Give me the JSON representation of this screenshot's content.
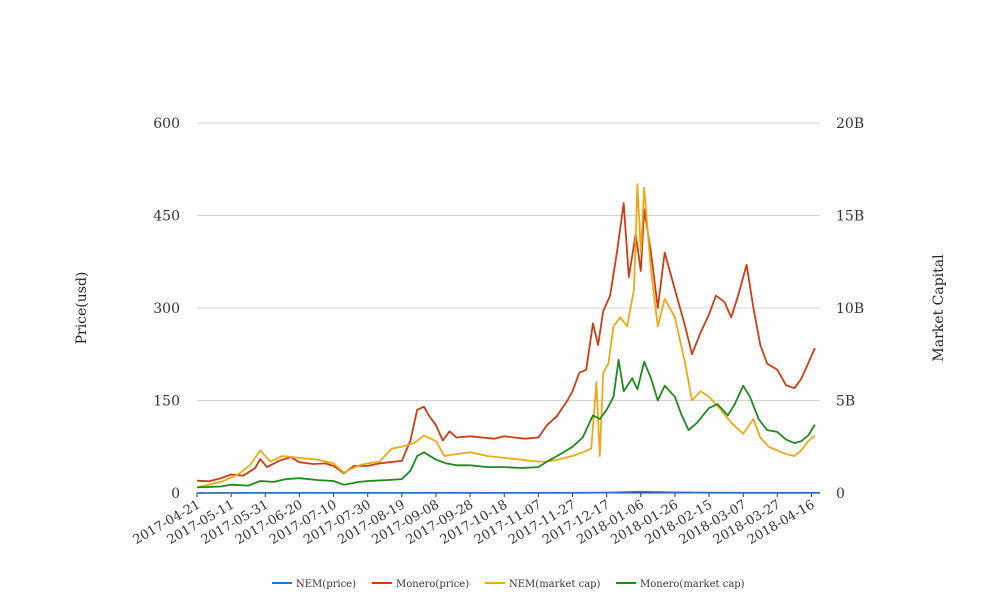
{
  "chart_data": {
    "type": "line",
    "ylabel": "Price(usd)",
    "y2label": "Market Capital",
    "ylim": [
      0,
      600
    ],
    "y2lim": [
      0,
      20000000000
    ],
    "yticks": [
      0,
      150,
      300,
      450,
      600
    ],
    "yticks_labels": [
      "0",
      "150",
      "300",
      "450",
      "600"
    ],
    "y2ticks_labels": [
      "0",
      "5B",
      "10B",
      "15B",
      "20B"
    ],
    "xlim": [
      "2017-04-21",
      "2018-04-21"
    ],
    "xtick_labels": [
      "2017-04-21",
      "2017-05-11",
      "2017-05-31",
      "2017-06-20",
      "2017-07-10",
      "2017-07-30",
      "2017-08-19",
      "2017-09-08",
      "2017-09-28",
      "2017-10-18",
      "2017-11-07",
      "2017-11-27",
      "2017-12-17",
      "2018-01-06",
      "2018-01-26",
      "2018-02-15",
      "2018-03-07",
      "2018-03-27",
      "2018-04-16"
    ],
    "grid": "horizontal",
    "legend_position": "bottom",
    "series": [
      {
        "name": "NEM(price)",
        "axis": "left",
        "color": "#2a6fc9",
        "points": [
          [
            "2017-04-21",
            0.01
          ],
          [
            "2017-05-21",
            0.2
          ],
          [
            "2017-06-20",
            0.2
          ],
          [
            "2017-08-19",
            0.2
          ],
          [
            "2017-09-08",
            0.3
          ],
          [
            "2017-10-18",
            0.2
          ],
          [
            "2017-11-27",
            0.3
          ],
          [
            "2017-12-17",
            0.7
          ],
          [
            "2018-01-06",
            1.9
          ],
          [
            "2018-01-26",
            1.0
          ],
          [
            "2018-02-15",
            0.5
          ],
          [
            "2018-03-07",
            0.4
          ],
          [
            "2018-03-27",
            0.25
          ],
          [
            "2018-04-21",
            0.3
          ]
        ]
      },
      {
        "name": "Monero(price)",
        "axis": "left",
        "color": "#cc3d14",
        "points": [
          [
            "2017-04-21",
            20
          ],
          [
            "2017-04-28",
            19
          ],
          [
            "2017-05-05",
            24
          ],
          [
            "2017-05-11",
            30
          ],
          [
            "2017-05-18",
            28
          ],
          [
            "2017-05-25",
            40
          ],
          [
            "2017-05-28",
            55
          ],
          [
            "2017-06-01",
            42
          ],
          [
            "2017-06-08",
            52
          ],
          [
            "2017-06-15",
            58
          ],
          [
            "2017-06-20",
            50
          ],
          [
            "2017-06-28",
            47
          ],
          [
            "2017-07-05",
            48
          ],
          [
            "2017-07-10",
            44
          ],
          [
            "2017-07-16",
            32
          ],
          [
            "2017-07-22",
            44
          ],
          [
            "2017-07-30",
            44
          ],
          [
            "2017-08-06",
            48
          ],
          [
            "2017-08-12",
            50
          ],
          [
            "2017-08-19",
            52
          ],
          [
            "2017-08-24",
            85
          ],
          [
            "2017-08-28",
            135
          ],
          [
            "2017-09-01",
            140
          ],
          [
            "2017-09-04",
            125
          ],
          [
            "2017-09-08",
            110
          ],
          [
            "2017-09-12",
            85
          ],
          [
            "2017-09-16",
            100
          ],
          [
            "2017-09-20",
            90
          ],
          [
            "2017-09-28",
            92
          ],
          [
            "2017-10-05",
            90
          ],
          [
            "2017-10-12",
            88
          ],
          [
            "2017-10-18",
            92
          ],
          [
            "2017-10-24",
            90
          ],
          [
            "2017-10-30",
            88
          ],
          [
            "2017-11-07",
            90
          ],
          [
            "2017-11-12",
            110
          ],
          [
            "2017-11-18",
            125
          ],
          [
            "2017-11-24",
            150
          ],
          [
            "2017-11-27",
            165
          ],
          [
            "2017-12-01",
            195
          ],
          [
            "2017-12-05",
            200
          ],
          [
            "2017-12-09",
            275
          ],
          [
            "2017-12-12",
            240
          ],
          [
            "2017-12-15",
            295
          ],
          [
            "2017-12-19",
            320
          ],
          [
            "2017-12-23",
            390
          ],
          [
            "2017-12-27",
            470
          ],
          [
            "2017-12-30",
            350
          ],
          [
            "2018-01-03",
            420
          ],
          [
            "2018-01-06",
            360
          ],
          [
            "2018-01-08",
            460
          ],
          [
            "2018-01-12",
            390
          ],
          [
            "2018-01-16",
            300
          ],
          [
            "2018-01-20",
            390
          ],
          [
            "2018-01-26",
            330
          ],
          [
            "2018-02-01",
            270
          ],
          [
            "2018-02-05",
            225
          ],
          [
            "2018-02-10",
            260
          ],
          [
            "2018-02-15",
            290
          ],
          [
            "2018-02-19",
            320
          ],
          [
            "2018-02-24",
            310
          ],
          [
            "2018-02-28",
            285
          ],
          [
            "2018-03-04",
            320
          ],
          [
            "2018-03-09",
            370
          ],
          [
            "2018-03-13",
            300
          ],
          [
            "2018-03-17",
            240
          ],
          [
            "2018-03-21",
            210
          ],
          [
            "2018-03-27",
            200
          ],
          [
            "2018-04-01",
            175
          ],
          [
            "2018-04-06",
            170
          ],
          [
            "2018-04-10",
            185
          ],
          [
            "2018-04-14",
            210
          ],
          [
            "2018-04-18",
            235
          ]
        ]
      },
      {
        "name": "NEM(market cap)",
        "axis": "right",
        "color": "#eda915",
        "points": [
          [
            "2017-04-21",
            300000000
          ],
          [
            "2017-05-05",
            600000000
          ],
          [
            "2017-05-15",
            1000000000
          ],
          [
            "2017-05-22",
            1500000000
          ],
          [
            "2017-05-28",
            2300000000
          ],
          [
            "2017-06-03",
            1700000000
          ],
          [
            "2017-06-10",
            2000000000
          ],
          [
            "2017-06-20",
            1900000000
          ],
          [
            "2017-07-01",
            1800000000
          ],
          [
            "2017-07-10",
            1600000000
          ],
          [
            "2017-07-16",
            1100000000
          ],
          [
            "2017-07-25",
            1500000000
          ],
          [
            "2017-07-30",
            1600000000
          ],
          [
            "2017-08-06",
            1700000000
          ],
          [
            "2017-08-13",
            2400000000
          ],
          [
            "2017-08-19",
            2500000000
          ],
          [
            "2017-08-26",
            2700000000
          ],
          [
            "2017-09-01",
            3100000000
          ],
          [
            "2017-09-08",
            2800000000
          ],
          [
            "2017-09-13",
            2000000000
          ],
          [
            "2017-09-20",
            2100000000
          ],
          [
            "2017-09-28",
            2200000000
          ],
          [
            "2017-10-08",
            2000000000
          ],
          [
            "2017-10-18",
            1900000000
          ],
          [
            "2017-10-28",
            1800000000
          ],
          [
            "2017-11-07",
            1700000000
          ],
          [
            "2017-11-12",
            1700000000
          ],
          [
            "2017-11-18",
            1800000000
          ],
          [
            "2017-11-27",
            2000000000
          ],
          [
            "2017-12-03",
            2200000000
          ],
          [
            "2017-12-08",
            2400000000
          ],
          [
            "2017-12-11",
            6000000000
          ],
          [
            "2017-12-13",
            2000000000
          ],
          [
            "2017-12-15",
            6500000000
          ],
          [
            "2017-12-18",
            7000000000
          ],
          [
            "2017-12-21",
            9000000000
          ],
          [
            "2017-12-25",
            9500000000
          ],
          [
            "2017-12-29",
            9000000000
          ],
          [
            "2018-01-02",
            11000000000
          ],
          [
            "2018-01-04",
            16700000000
          ],
          [
            "2018-01-06",
            13000000000
          ],
          [
            "2018-01-08",
            16500000000
          ],
          [
            "2018-01-12",
            12000000000
          ],
          [
            "2018-01-16",
            9000000000
          ],
          [
            "2018-01-20",
            10500000000
          ],
          [
            "2018-01-26",
            9500000000
          ],
          [
            "2018-02-01",
            7000000000
          ],
          [
            "2018-02-05",
            5000000000
          ],
          [
            "2018-02-10",
            5500000000
          ],
          [
            "2018-02-15",
            5200000000
          ],
          [
            "2018-02-22",
            4500000000
          ],
          [
            "2018-02-28",
            3800000000
          ],
          [
            "2018-03-07",
            3200000000
          ],
          [
            "2018-03-13",
            4000000000
          ],
          [
            "2018-03-17",
            3000000000
          ],
          [
            "2018-03-22",
            2500000000
          ],
          [
            "2018-03-27",
            2300000000
          ],
          [
            "2018-04-01",
            2100000000
          ],
          [
            "2018-04-06",
            2000000000
          ],
          [
            "2018-04-10",
            2300000000
          ],
          [
            "2018-04-14",
            2800000000
          ],
          [
            "2018-04-18",
            3100000000
          ]
        ]
      },
      {
        "name": "Monero(market cap)",
        "axis": "right",
        "color": "#1e8a1e",
        "points": [
          [
            "2017-04-21",
            300000000
          ],
          [
            "2017-05-05",
            350000000
          ],
          [
            "2017-05-11",
            450000000
          ],
          [
            "2017-05-21",
            400000000
          ],
          [
            "2017-05-28",
            650000000
          ],
          [
            "2017-06-05",
            600000000
          ],
          [
            "2017-06-12",
            750000000
          ],
          [
            "2017-06-20",
            800000000
          ],
          [
            "2017-07-01",
            700000000
          ],
          [
            "2017-07-10",
            650000000
          ],
          [
            "2017-07-16",
            450000000
          ],
          [
            "2017-07-25",
            600000000
          ],
          [
            "2017-07-30",
            650000000
          ],
          [
            "2017-08-10",
            700000000
          ],
          [
            "2017-08-19",
            750000000
          ],
          [
            "2017-08-24",
            1200000000
          ],
          [
            "2017-08-28",
            2000000000
          ],
          [
            "2017-09-01",
            2200000000
          ],
          [
            "2017-09-08",
            1800000000
          ],
          [
            "2017-09-14",
            1600000000
          ],
          [
            "2017-09-20",
            1500000000
          ],
          [
            "2017-09-28",
            1500000000
          ],
          [
            "2017-10-08",
            1400000000
          ],
          [
            "2017-10-18",
            1400000000
          ],
          [
            "2017-10-28",
            1350000000
          ],
          [
            "2017-11-07",
            1400000000
          ],
          [
            "2017-11-12",
            1700000000
          ],
          [
            "2017-11-18",
            2000000000
          ],
          [
            "2017-11-27",
            2500000000
          ],
          [
            "2017-12-03",
            3000000000
          ],
          [
            "2017-12-09",
            4200000000
          ],
          [
            "2017-12-13",
            4000000000
          ],
          [
            "2017-12-17",
            4500000000
          ],
          [
            "2017-12-21",
            5200000000
          ],
          [
            "2017-12-24",
            7200000000
          ],
          [
            "2017-12-27",
            5500000000
          ],
          [
            "2018-01-01",
            6200000000
          ],
          [
            "2018-01-04",
            5600000000
          ],
          [
            "2018-01-08",
            7100000000
          ],
          [
            "2018-01-12",
            6200000000
          ],
          [
            "2018-01-16",
            5000000000
          ],
          [
            "2018-01-20",
            5800000000
          ],
          [
            "2018-01-26",
            5200000000
          ],
          [
            "2018-01-30",
            4200000000
          ],
          [
            "2018-02-03",
            3400000000
          ],
          [
            "2018-02-08",
            3800000000
          ],
          [
            "2018-02-15",
            4600000000
          ],
          [
            "2018-02-20",
            4800000000
          ],
          [
            "2018-02-26",
            4200000000
          ],
          [
            "2018-03-02",
            4800000000
          ],
          [
            "2018-03-07",
            5800000000
          ],
          [
            "2018-03-11",
            5200000000
          ],
          [
            "2018-03-16",
            4000000000
          ],
          [
            "2018-03-21",
            3400000000
          ],
          [
            "2018-03-27",
            3300000000
          ],
          [
            "2018-04-01",
            2900000000
          ],
          [
            "2018-04-06",
            2700000000
          ],
          [
            "2018-04-10",
            2800000000
          ],
          [
            "2018-04-14",
            3100000000
          ],
          [
            "2018-04-18",
            3700000000
          ]
        ]
      }
    ]
  }
}
